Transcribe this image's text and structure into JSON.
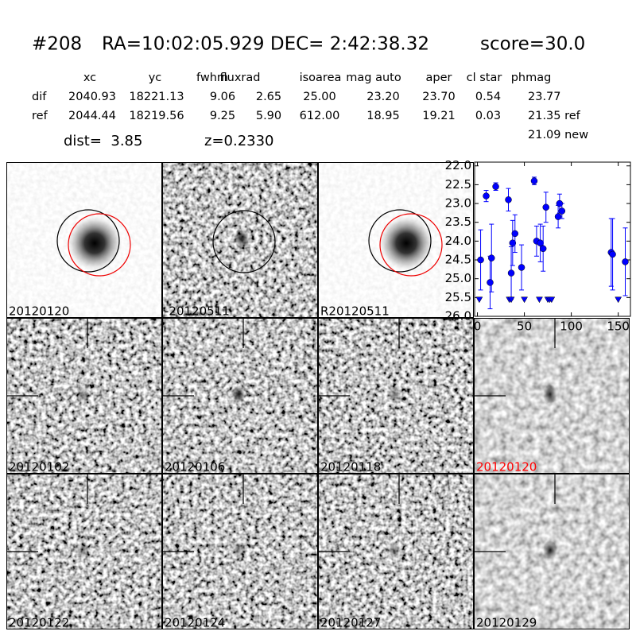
{
  "header": {
    "id": "#208",
    "coords": "RA=10:02:05.929 DEC= 2:42:38.32",
    "score": "score=30.0"
  },
  "table": {
    "columns": [
      "xc",
      "yc",
      "fwhm",
      "fluxrad",
      "isoarea",
      "mag auto",
      "aper",
      "cl star",
      "phmag"
    ],
    "rows": [
      {
        "label": "dif",
        "cells": [
          "2040.93",
          "18221.13",
          "9.06",
          "2.65",
          "25.00",
          "23.20",
          "23.70",
          "0.54",
          "23.77"
        ]
      },
      {
        "label": "ref",
        "cells": [
          "2044.44",
          "18219.56",
          "9.25",
          "5.90",
          "612.00",
          "18.95",
          "19.21",
          "0.03",
          "21.35 ref"
        ]
      }
    ],
    "extra": "21.09 new"
  },
  "dist": "dist=  3.85",
  "z": "z=0.2330",
  "light_curve": {
    "type": "scatter",
    "color": "#0000ff",
    "x": [
      3.4,
      9.3,
      13.5,
      15,
      19.5,
      33,
      36,
      37.5,
      40,
      47,
      60.5,
      63,
      67,
      70,
      73,
      86,
      87.5,
      90,
      142.5,
      144,
      157.5
    ],
    "values": [
      24.5,
      22.8,
      25.1,
      24.45,
      22.55,
      22.9,
      24.85,
      24.05,
      23.8,
      24.7,
      22.4,
      24.0,
      24.05,
      24.2,
      23.1,
      23.35,
      23.0,
      23.2,
      24.3,
      24.35,
      24.55
    ],
    "errors": [
      0.8,
      0.15,
      0.7,
      0.9,
      0.1,
      0.3,
      0.7,
      0.6,
      0.5,
      0.6,
      0.1,
      0.4,
      0.5,
      0.6,
      0.4,
      0.3,
      0.25,
      0.2,
      0.9,
      0.95,
      0.9
    ],
    "limits_x": [
      2,
      34,
      36,
      50,
      66,
      75,
      77,
      79,
      150
    ],
    "limits": [
      25.55,
      25.55,
      25.55,
      25.55,
      25.55,
      25.55,
      25.55,
      25.55,
      25.55
    ],
    "xlim": [
      -3,
      163
    ],
    "ylim": [
      26.0,
      21.9
    ],
    "xticks": [
      0,
      50,
      100,
      150
    ],
    "yticks": [
      {
        "value": 22,
        "label": "22.0"
      },
      {
        "value": 22.5,
        "label": "22.5"
      },
      {
        "value": 23,
        "label": "23.0"
      },
      {
        "value": 23.5,
        "label": "23.5"
      },
      {
        "value": 24,
        "label": "24.0"
      },
      {
        "value": 24.5,
        "label": "24.5"
      },
      {
        "value": 25,
        "label": "25.0"
      },
      {
        "value": 25.5,
        "label": "25.5"
      },
      {
        "value": 26,
        "label": "26.0"
      }
    ]
  },
  "stamps": [
    {
      "label": "20120120",
      "color": "#000000"
    },
    {
      "label": "-20120511",
      "color": "#000000"
    },
    {
      "label": "R20120511",
      "color": "#000000"
    },
    {
      "label": "20120102",
      "color": "#000000"
    },
    {
      "label": "20120106",
      "color": "#000000"
    },
    {
      "label": "20120118",
      "color": "#000000"
    },
    {
      "label": "20120120",
      "color": "#ff0000"
    },
    {
      "label": "20120122",
      "color": "#000000"
    },
    {
      "label": "20120124",
      "color": "#000000"
    },
    {
      "label": "20120127",
      "color": "#000000"
    },
    {
      "label": "20120129",
      "color": "#000000"
    }
  ]
}
